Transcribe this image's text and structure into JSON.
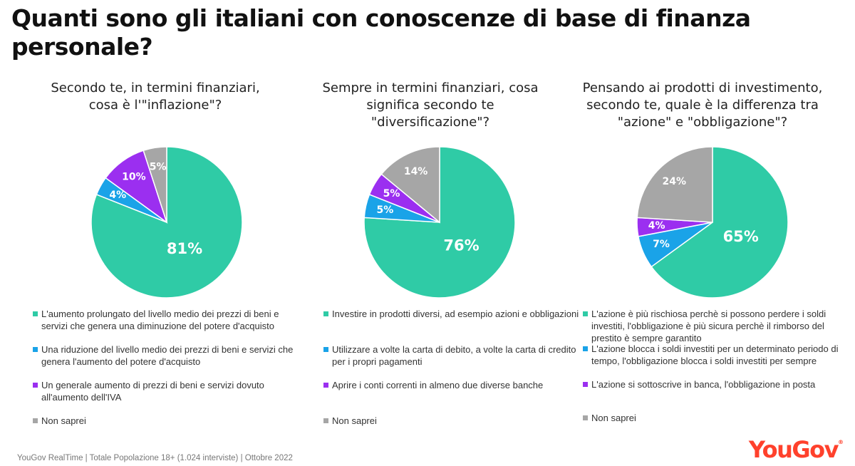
{
  "title": "Quanti sono gli italiani con conoscenze di base di finanza personale?",
  "footer": "YouGov RealTime | Totale Popolazione 18+ (1.024 interviste) | Ottobre 2022",
  "logo": "YouGov",
  "colors": {
    "teal": "#2fcba6",
    "blue": "#1aa3e8",
    "purple": "#9b2ff0",
    "grey": "#a6a6a6",
    "brand": "#ff412c"
  },
  "chart_data": [
    {
      "type": "pie",
      "title": "Secondo te, in termini finanziari, cosa è l'\"inflazione\"?",
      "slices": [
        {
          "label": "L'aumento prolungato del livello medio dei prezzi di beni e servizi che genera una diminuzione del potere d'acquisto",
          "value": 81,
          "display": "81%",
          "color": "#2fcba6"
        },
        {
          "label": "Una riduzione del livello medio dei prezzi di beni e servizi che genera l'aumento del potere d'acquisto",
          "value": 4,
          "display": "4%",
          "color": "#1aa3e8"
        },
        {
          "label": "Un generale aumento di prezzi di beni e servizi dovuto all'aumento dell'IVA",
          "value": 10,
          "display": "10%",
          "color": "#9b2ff0"
        },
        {
          "label": "Non saprei",
          "value": 5,
          "display": "5%",
          "color": "#a6a6a6"
        }
      ]
    },
    {
      "type": "pie",
      "title": "Sempre in termini finanziari, cosa significa secondo te \"diversificazione\"?",
      "slices": [
        {
          "label": "Investire in prodotti diversi, ad esempio azioni e obbligazioni",
          "value": 76,
          "display": "76%",
          "color": "#2fcba6"
        },
        {
          "label": "Utilizzare a volte la carta di debito, a volte la carta di credito per i propri pagamenti",
          "value": 5,
          "display": "5%",
          "color": "#1aa3e8"
        },
        {
          "label": "Aprire i conti correnti in almeno due diverse banche",
          "value": 5,
          "display": "5%",
          "color": "#9b2ff0"
        },
        {
          "label": "Non saprei",
          "value": 14,
          "display": "14%",
          "color": "#a6a6a6"
        }
      ]
    },
    {
      "type": "pie",
      "title": "Pensando ai prodotti di investimento, secondo te, quale è la differenza tra \"azione\" e \"obbligazione\"?",
      "slices": [
        {
          "label": "L'azione è più rischiosa perchè si possono perdere i soldi investiti, l'obbligazione è più sicura perchè il rimborso del prestito è sempre garantito",
          "value": 65,
          "display": "65%",
          "color": "#2fcba6"
        },
        {
          "label": "L'azione blocca i soldi investiti per un determinato periodo di tempo, l'obbligazione blocca i soldi investiti per sempre",
          "value": 7,
          "display": "7%",
          "color": "#1aa3e8"
        },
        {
          "label": "L'azione si sottoscrive in banca, l'obbligazione in posta",
          "value": 4,
          "display": "4%",
          "color": "#9b2ff0"
        },
        {
          "label": "Non saprei",
          "value": 24,
          "display": "24%",
          "color": "#a6a6a6"
        }
      ]
    }
  ]
}
